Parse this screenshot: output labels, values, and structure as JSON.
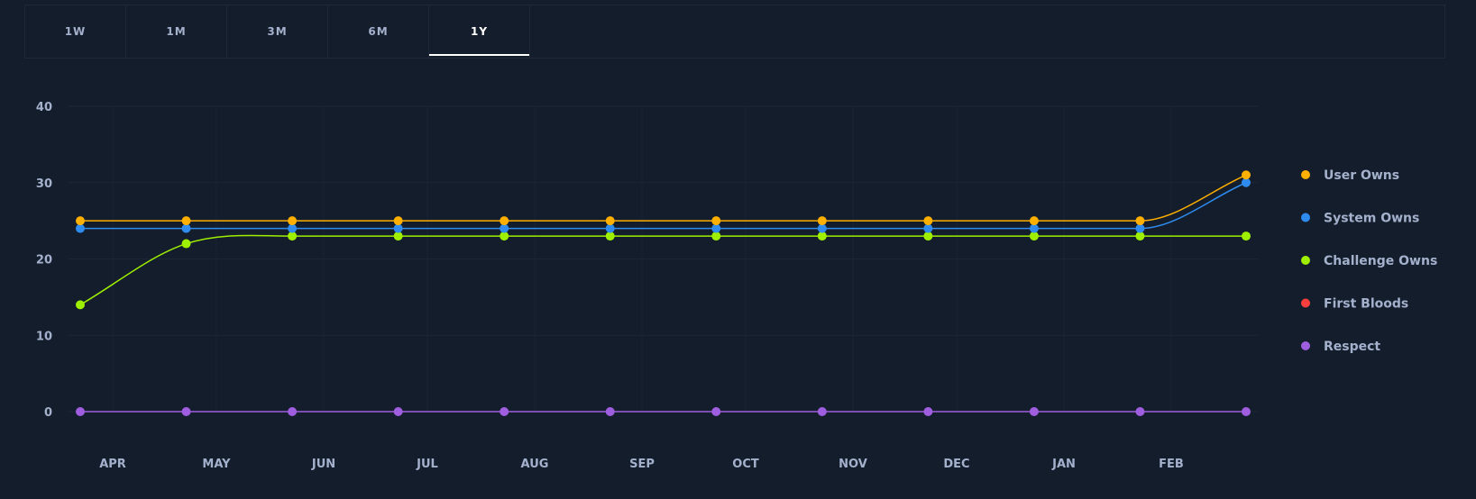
{
  "tabs": [
    {
      "label": "1W",
      "active": false
    },
    {
      "label": "1M",
      "active": false
    },
    {
      "label": "3M",
      "active": false
    },
    {
      "label": "6M",
      "active": false
    },
    {
      "label": "1Y",
      "active": true
    }
  ],
  "chart_data": {
    "type": "line",
    "x_tick_labels": [
      "APR",
      "MAY",
      "JUN",
      "JUL",
      "AUG",
      "SEP",
      "OCT",
      "NOV",
      "DEC",
      "JAN",
      "FEB"
    ],
    "ylim": [
      0,
      40
    ],
    "y_ticks": [
      0,
      10,
      20,
      30,
      40
    ],
    "grid": true,
    "legend_position": "right",
    "point_count": 12,
    "series": [
      {
        "name": "User Owns",
        "color": "#ffaf00",
        "values": [
          25,
          25,
          25,
          25,
          25,
          25,
          25,
          25,
          25,
          25,
          25,
          31
        ]
      },
      {
        "name": "System Owns",
        "color": "#2e8cf0",
        "values": [
          24,
          24,
          24,
          24,
          24,
          24,
          24,
          24,
          24,
          24,
          24,
          30
        ]
      },
      {
        "name": "Challenge Owns",
        "color": "#9fef00",
        "values": [
          14,
          22,
          23,
          23,
          23,
          23,
          23,
          23,
          23,
          23,
          23,
          23
        ]
      },
      {
        "name": "First Bloods",
        "color": "#ff3e3e",
        "values": []
      },
      {
        "name": "Respect",
        "color": "#9f5ee0",
        "values": [
          0,
          0,
          0,
          0,
          0,
          0,
          0,
          0,
          0,
          0,
          0,
          0
        ]
      }
    ]
  }
}
